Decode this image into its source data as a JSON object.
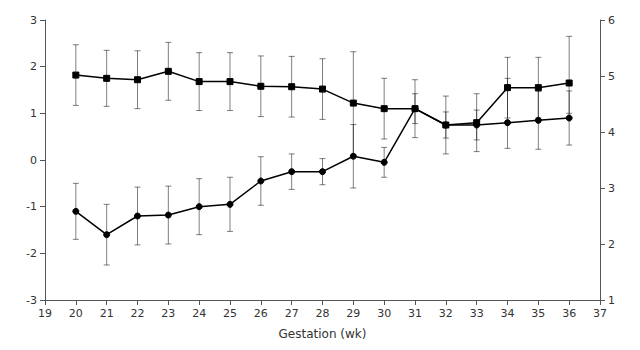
{
  "chart_data": {
    "type": "line",
    "xlabel": "Gestation (wk)",
    "x": [
      20,
      21,
      22,
      23,
      24,
      25,
      26,
      27,
      28,
      29,
      30,
      31,
      32,
      33,
      34,
      35,
      36
    ],
    "series": [
      {
        "values": [
          1.82,
          1.75,
          1.72,
          1.9,
          1.68,
          1.68,
          1.58,
          1.57,
          1.52,
          1.22,
          1.1,
          1.1,
          0.75,
          0.8,
          1.55,
          1.55,
          1.65
        ],
        "yerr_up": [
          0.65,
          0.6,
          0.62,
          0.62,
          0.62,
          0.62,
          0.65,
          0.65,
          0.65,
          1.1,
          0.65,
          0.62,
          0.62,
          0.62,
          0.65,
          0.65,
          1.0
        ],
        "yerr_down": [
          0.65,
          0.6,
          0.62,
          0.62,
          0.62,
          0.62,
          0.65,
          0.65,
          0.65,
          1.1,
          0.65,
          0.62,
          0.62,
          0.62,
          0.65,
          0.65,
          0.65
        ],
        "marker": "square",
        "color": "#000000"
      },
      {
        "values": [
          -1.1,
          -1.6,
          -1.2,
          -1.18,
          -1.0,
          -0.95,
          -0.45,
          -0.25,
          -0.25,
          0.08,
          -0.05,
          1.1,
          0.75,
          0.75,
          0.8,
          0.85,
          0.9
        ],
        "yerr_up": [
          0.6,
          0.65,
          0.62,
          0.62,
          0.6,
          0.58,
          0.52,
          0.38,
          0.28,
          0.68,
          0.32,
          0.32,
          0.28,
          0.32,
          0.95,
          0.62,
          0.58
        ],
        "yerr_down": [
          0.6,
          0.65,
          0.62,
          0.62,
          0.6,
          0.58,
          0.52,
          0.38,
          0.28,
          0.68,
          0.32,
          0.32,
          0.28,
          0.32,
          0.55,
          0.62,
          0.58
        ],
        "marker": "circle",
        "color": "#000000"
      }
    ],
    "xlim": [
      19,
      37
    ],
    "xticks": [
      19,
      20,
      21,
      22,
      23,
      24,
      25,
      26,
      27,
      28,
      29,
      30,
      31,
      32,
      33,
      34,
      35,
      36,
      37
    ],
    "ylim": [
      -3,
      3
    ],
    "yticks": [
      -3,
      -2,
      -1,
      0,
      1,
      2,
      3
    ],
    "y2lim": [
      1,
      6
    ],
    "y2ticks": [
      1,
      2,
      3,
      4,
      5,
      6
    ],
    "grid": false
  }
}
